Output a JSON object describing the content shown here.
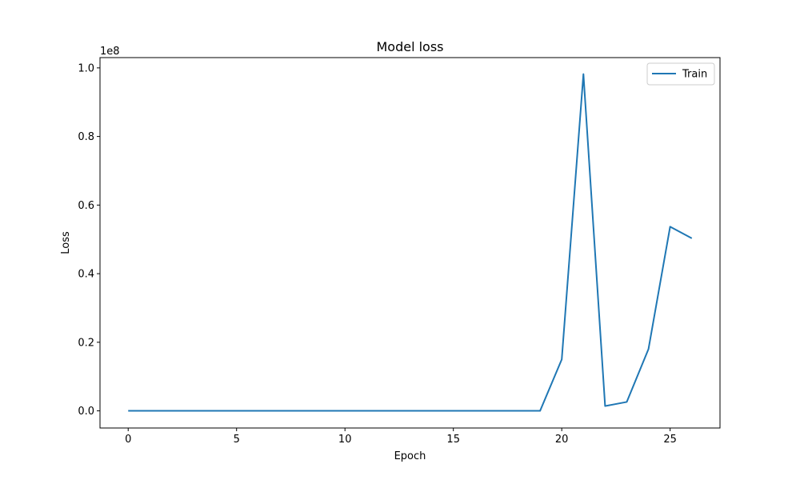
{
  "chart_data": {
    "type": "line",
    "title": "Model loss",
    "xlabel": "Epoch",
    "ylabel": "Loss",
    "y_offset_label": "1e8",
    "y_scale_factor": 100000000,
    "xlim": [
      -1.3,
      27.3
    ],
    "ylim": [
      -5000000,
      103000000
    ],
    "x_ticks": [
      0,
      5,
      10,
      15,
      20,
      25
    ],
    "x_tick_labels": [
      "0",
      "5",
      "10",
      "15",
      "20",
      "25"
    ],
    "y_ticks": [
      0,
      20000000,
      40000000,
      60000000,
      80000000,
      100000000
    ],
    "y_tick_labels": [
      "0.0",
      "0.2",
      "0.4",
      "0.6",
      "0.8",
      "1.0"
    ],
    "grid": false,
    "legend_position": "top-right",
    "series": [
      {
        "name": "Train",
        "color": "#1f77b4",
        "x": [
          0,
          1,
          2,
          3,
          4,
          5,
          6,
          7,
          8,
          9,
          10,
          11,
          12,
          13,
          14,
          15,
          16,
          17,
          18,
          19,
          20,
          21,
          22,
          23,
          24,
          25,
          26
        ],
        "values": [
          0,
          0,
          0,
          0,
          0,
          0,
          0,
          0,
          0,
          0,
          0,
          0,
          0,
          0,
          0,
          0,
          0,
          0,
          0,
          0,
          15000000,
          98200000,
          1400000,
          2600000,
          18000000,
          53700000,
          50300000
        ]
      }
    ]
  }
}
